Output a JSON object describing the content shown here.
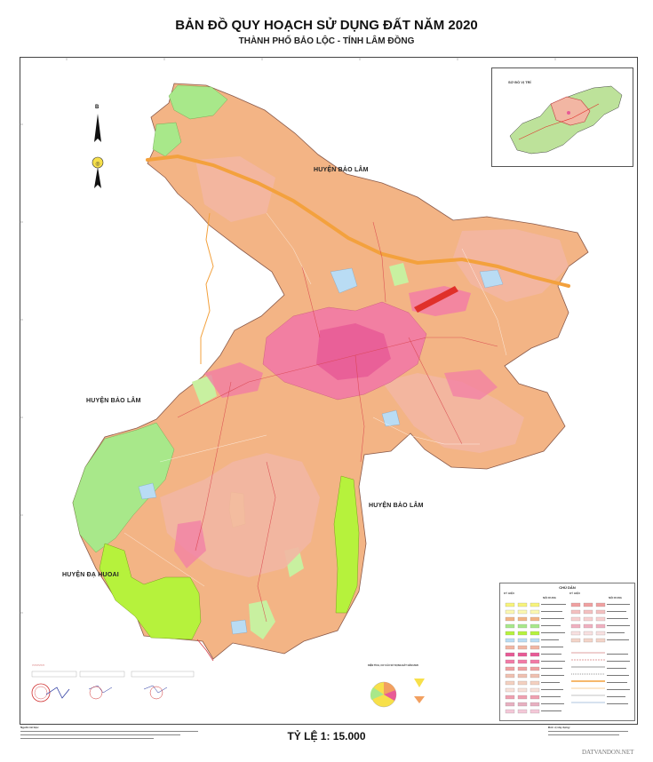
{
  "map": {
    "title": "BẢN ĐỒ QUY HOẠCH SỬ DỤNG ĐẤT NĂM 2020",
    "subtitle": "THÀNH PHỐ BẢO LỘC - TỈNH LÂM ĐỒNG",
    "scale": "TỶ LỆ 1: 15.000",
    "watermark": "DATVANDON.NET"
  },
  "regions": {
    "north": "HUYỆN BẢO LÂM",
    "west": "HUYỆN BẢO LÂM",
    "east": "HUYỆN BẢO LÂM",
    "southwest": "HUYỆN ĐẠ HUOAI"
  },
  "inset": {
    "title": "SƠ ĐỒ VỊ TRÍ"
  },
  "legend": {
    "title": "CHÚ DẪN",
    "col_kyhieu": "KÝ HIỆU",
    "col_noidung": "NỘI DUNG",
    "colors": {
      "residential_urban": "#f27aa6",
      "residential_rural": "#f2b6a3",
      "perennial": "#f3b485",
      "forest_production": "#a8e88a",
      "forest_protection": "#b6f23c",
      "annual_crop": "#f7f37a",
      "rice": "#fbf8b0",
      "public": "#f0a0a0",
      "water": "#b9dcf4",
      "road": "#f3a13d"
    }
  },
  "compass": {
    "north_letter": "B"
  },
  "notes": {
    "left_title": "Nguồn tài liệu:",
    "right_title": "Đơn vị xây dựng:"
  },
  "pie": {
    "title": "DIỆN TÍCH, CƠ CẤU SỬ DỤNG ĐẤT NĂM 2020"
  }
}
